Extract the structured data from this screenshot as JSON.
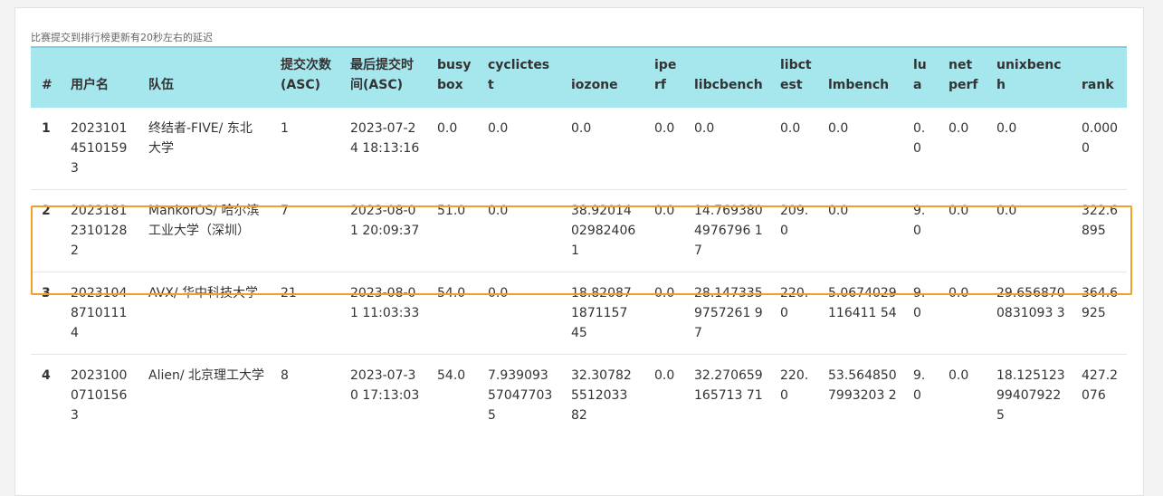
{
  "note": "比赛提交到排行榜更新有20秒左右的延迟",
  "columns": [
    "#",
    "用户名",
    "队伍",
    "提交次数(ASC)",
    "最后提交时间(ASC)",
    "busybox",
    "cyclictest",
    "iozone",
    "iperf",
    "libcbench",
    "libctest",
    "lmbench",
    "lua",
    "netperf",
    "unixbench",
    "rank"
  ],
  "rows": [
    [
      "1",
      "20231014510159 3",
      "终结者-FIVE/ 东北大学",
      "1",
      "2023-07-24 18:13:16",
      "0.0",
      "0.0",
      "0.0",
      "0.0",
      "0.0",
      "0.0",
      "0.0",
      "0.0",
      "0.0",
      "0.0",
      "0.0000"
    ],
    [
      "2",
      "20231812310128 2",
      "MankorOS/ 哈尔滨工业大学（深圳）",
      "7",
      "2023-08-01 20:09:37",
      "51.0",
      "0.0",
      "38.92014029824061",
      "0.0",
      "14.7693804976796 17",
      "209.0",
      "0.0",
      "9.0",
      "0.0",
      "0.0",
      "322.6895"
    ],
    [
      "3",
      "2023104 87101114",
      "AVX/ 华中科技大学",
      "21",
      "2023-08-01 11:03:33",
      "54.0",
      "0.0",
      "18.820871871157 45",
      "0.0",
      "28.1473359757261 97",
      "220.0",
      "5.0674029116411 54",
      "9.0",
      "0.0",
      "29.6568700831093 3",
      "364.6925"
    ],
    [
      "4",
      "20231000710156 3",
      "Alien/ 北京理工大学",
      "8",
      "2023-07-30 17:13:03",
      "54.0",
      "7.93909357047703 5",
      "32.307825512033 82",
      "0.0",
      "32.270659165713 71",
      "220.0",
      "53.5648507993203 2",
      "9.0",
      "0.0",
      "18.12512399407922 5",
      "427.2076"
    ]
  ],
  "highlight_rank": "2",
  "colors": {
    "header_bg": "#a6e6ed",
    "highlight_border": "#f0a028"
  }
}
